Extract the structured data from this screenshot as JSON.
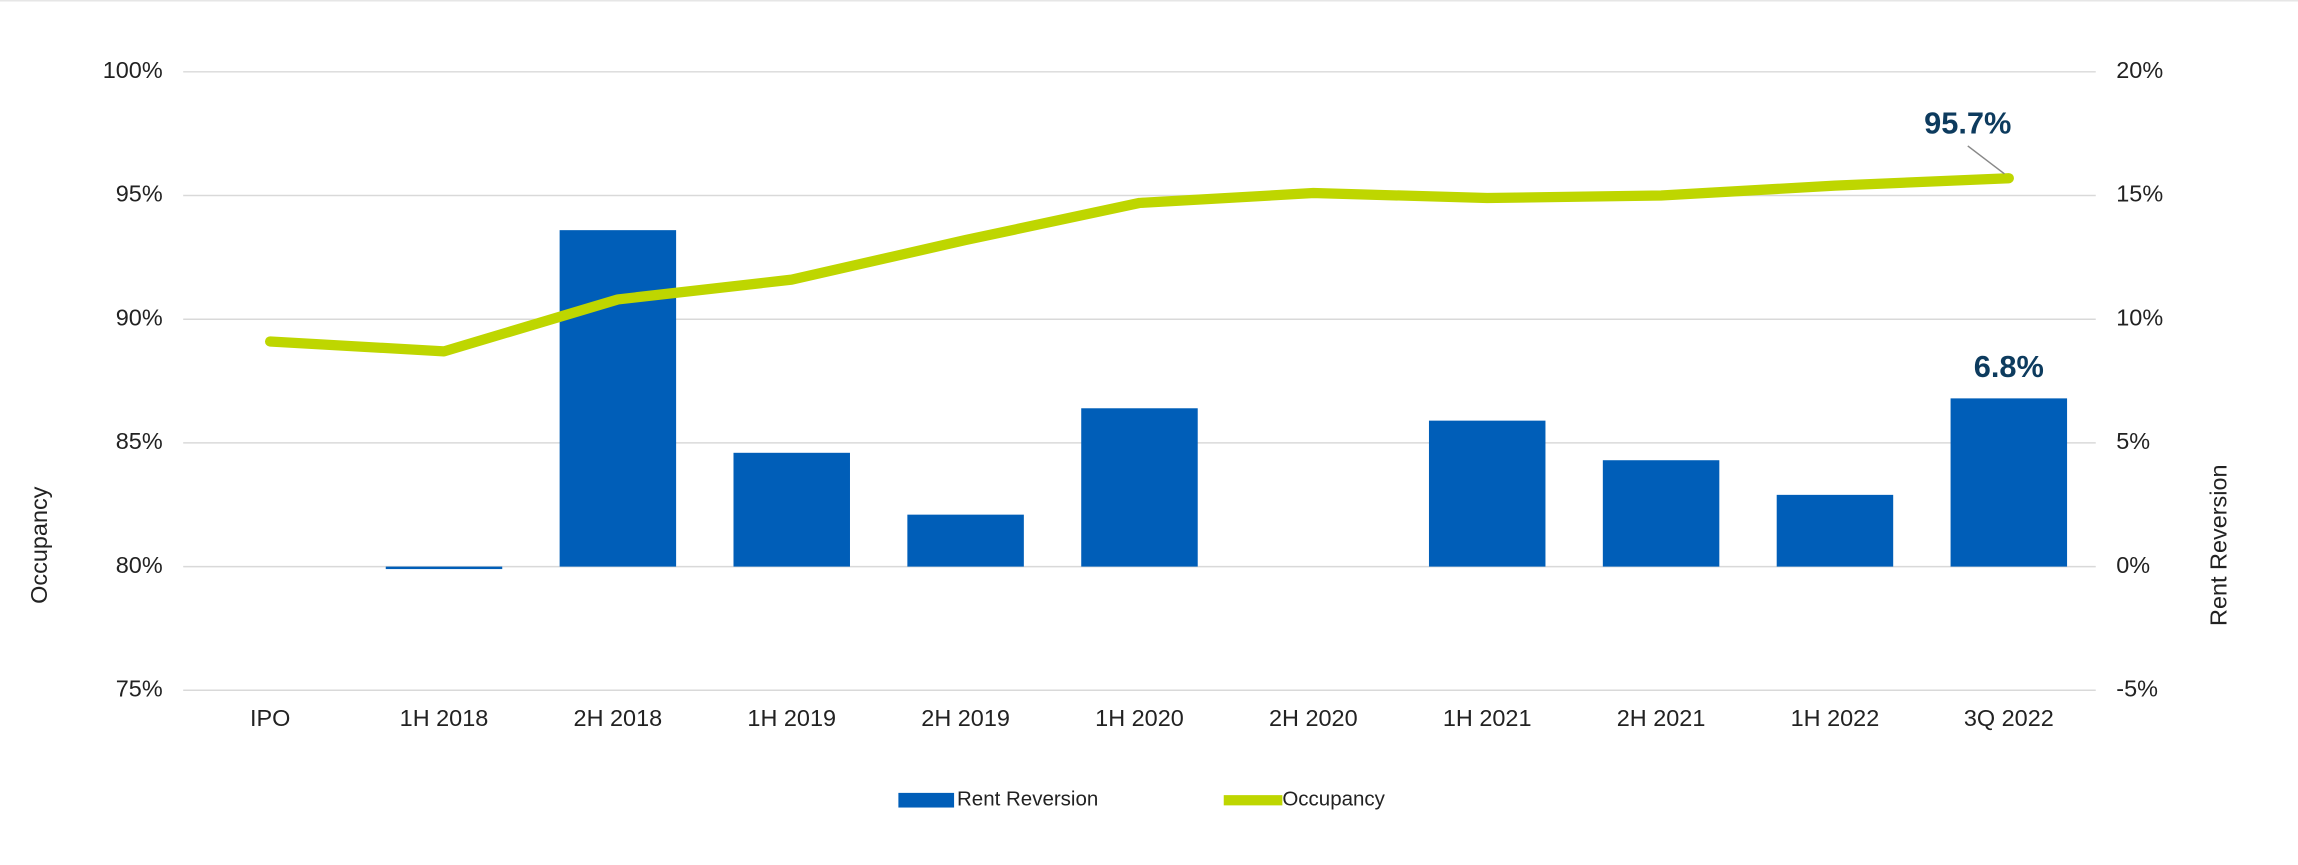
{
  "chart_data": {
    "type": "bar+line",
    "categories": [
      "IPO",
      "1H 2018",
      "2H 2018",
      "1H 2019",
      "2H 2019",
      "1H 2020",
      "2H 2020",
      "1H 2021",
      "2H 2021",
      "1H 2022",
      "3Q 2022"
    ],
    "series": [
      {
        "name": "Rent Reversion",
        "type": "bar",
        "axis": "y2",
        "color": "#005eb8",
        "values": [
          null,
          -0.1,
          13.6,
          4.6,
          2.1,
          6.4,
          null,
          5.9,
          4.3,
          2.9,
          6.8
        ],
        "value_labels": [
          null,
          null,
          null,
          null,
          null,
          null,
          null,
          null,
          null,
          null,
          "6.8%"
        ]
      },
      {
        "name": "Occupancy",
        "type": "line",
        "axis": "y",
        "color": "#bed600",
        "values": [
          89.1,
          88.7,
          90.8,
          91.6,
          93.2,
          94.7,
          95.1,
          94.9,
          95.0,
          95.4,
          95.7
        ],
        "value_labels": [
          null,
          null,
          null,
          null,
          null,
          null,
          null,
          null,
          null,
          null,
          "95.7%"
        ]
      }
    ],
    "ylabel": "Occupancy",
    "y2label": "Rent Reversion",
    "ylim": [
      75,
      100
    ],
    "yticks": [
      {
        "value": 75,
        "label": "75%"
      },
      {
        "value": 80,
        "label": "80%"
      },
      {
        "value": 85,
        "label": "85%"
      },
      {
        "value": 90,
        "label": "90%"
      },
      {
        "value": 95,
        "label": "95%"
      },
      {
        "value": 100,
        "label": "100%"
      }
    ],
    "y2lim": [
      -5,
      20
    ],
    "y2ticks": [
      {
        "value": -5,
        "label": "-5%"
      },
      {
        "value": 0,
        "label": "0%"
      },
      {
        "value": 5,
        "label": "5%"
      },
      {
        "value": 10,
        "label": "10%"
      },
      {
        "value": 15,
        "label": "15%"
      },
      {
        "value": 20,
        "label": "20%"
      }
    ],
    "grid": true,
    "legend": "bottom"
  }
}
